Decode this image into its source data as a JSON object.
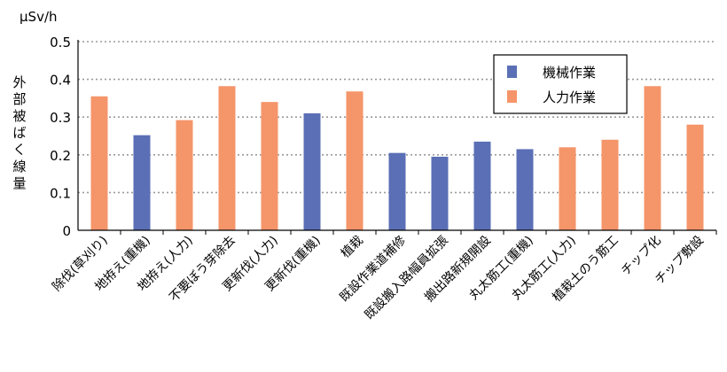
{
  "chart_data": {
    "type": "bar",
    "unit_label": "μSv/h",
    "ylabel": "外部被ばく線量",
    "ylim": [
      0,
      0.5
    ],
    "yticks": [
      "0",
      "0.1",
      "0.2",
      "0.3",
      "0.4",
      "0.5"
    ],
    "grid": true,
    "legend_position": "top-right",
    "legend": [
      {
        "name": "機械作業",
        "color": "#5a6fb5"
      },
      {
        "name": "人力作業",
        "color": "#f5956a"
      }
    ],
    "categories": [
      "除伐(草刈り)",
      "地拵え(重機)",
      "地拵え(人力)",
      "不要ぼう芽除去",
      "更新伐(人力)",
      "更新伐(重機)",
      "植栽",
      "既設作業道補修",
      "既設搬入路幅員拡張",
      "搬出路新規開設",
      "丸太筋工(重機)",
      "丸太筋工(人力)",
      "植栽土のう筋工",
      "チップ化",
      "チップ敷設"
    ],
    "values": [
      0.355,
      0.252,
      0.292,
      0.382,
      0.34,
      0.31,
      0.368,
      0.205,
      0.195,
      0.235,
      0.215,
      0.22,
      0.24,
      0.382,
      0.28
    ],
    "series_index": [
      1,
      0,
      1,
      1,
      1,
      0,
      1,
      0,
      0,
      0,
      0,
      1,
      1,
      1,
      1
    ]
  }
}
